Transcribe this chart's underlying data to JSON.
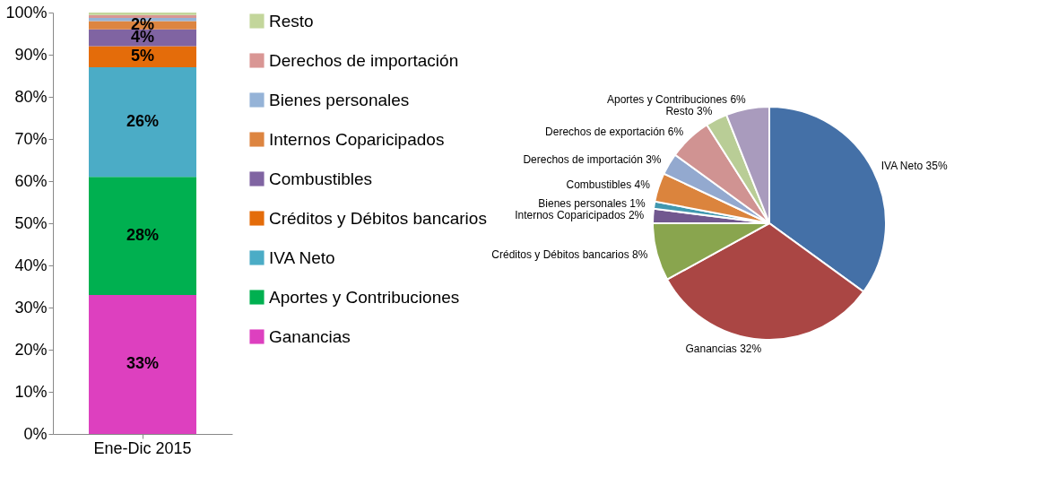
{
  "chart_data": [
    {
      "type": "bar",
      "stacked": true,
      "categories": [
        "Ene-Dic 2015"
      ],
      "series": [
        {
          "name": "Ganancias",
          "color": "#dd40bf",
          "values": [
            33
          ],
          "value_labels": [
            "33%"
          ]
        },
        {
          "name": "Aportes y Contribuciones",
          "color": "#00b050",
          "values": [
            28
          ],
          "value_labels": [
            "28%"
          ]
        },
        {
          "name": "IVA Neto",
          "color": "#4bacc6",
          "values": [
            26
          ],
          "value_labels": [
            "26%"
          ]
        },
        {
          "name": "Créditos y Débitos bancarios",
          "color": "#e46c0a",
          "values": [
            5
          ],
          "value_labels": [
            "5%"
          ]
        },
        {
          "name": "Combustibles",
          "color": "#8064a2",
          "values": [
            4
          ],
          "value_labels": [
            "4%"
          ]
        },
        {
          "name": "Internos Coparicipados",
          "color": "#dd8540",
          "values": [
            2
          ],
          "value_labels": [
            "2%"
          ]
        },
        {
          "name": "Bienes personales",
          "color": "#95b3d7",
          "values": [
            0.7
          ],
          "value_labels": [
            null
          ]
        },
        {
          "name": "Derechos de importación",
          "color": "#d99694",
          "values": [
            0.7
          ],
          "value_labels": [
            null
          ]
        },
        {
          "name": "Resto",
          "color": "#c3d69b",
          "values": [
            0.6
          ],
          "value_labels": [
            null
          ]
        }
      ],
      "ylim": [
        0,
        100
      ],
      "yticks": [
        {
          "value": 0,
          "label": "0%"
        },
        {
          "value": 10,
          "label": "10%"
        },
        {
          "value": 20,
          "label": "20%"
        },
        {
          "value": 30,
          "label": "30%"
        },
        {
          "value": 40,
          "label": "40%"
        },
        {
          "value": 50,
          "label": "50%"
        },
        {
          "value": 60,
          "label": "60%"
        },
        {
          "value": 70,
          "label": "70%"
        },
        {
          "value": 80,
          "label": "80%"
        },
        {
          "value": 90,
          "label": "90%"
        },
        {
          "value": 100,
          "label": "100%"
        }
      ],
      "grid": false,
      "legend": "right"
    },
    {
      "type": "pie",
      "categories": [
        "IVA Neto",
        "Ganancias",
        "Créditos y Débitos bancarios",
        "Internos Coparicipados",
        "Bienes personales",
        "Combustibles",
        "Derechos de importación",
        "Derechos de exportación",
        "Resto",
        "Aportes y Contribuciones"
      ],
      "values": [
        35,
        32,
        8,
        2,
        1,
        4,
        3,
        6,
        3,
        6
      ],
      "value_labels": [
        "35%",
        "32%",
        "8%",
        "2%",
        "1%",
        "4%",
        "3%",
        "6%",
        "3%",
        "6%"
      ],
      "colors": [
        "#4470a7",
        "#aa4644",
        "#89a54e",
        "#71588f",
        "#4198af",
        "#db843d",
        "#93a9cf",
        "#d09392",
        "#b9cd96",
        "#a99bbd"
      ]
    }
  ]
}
